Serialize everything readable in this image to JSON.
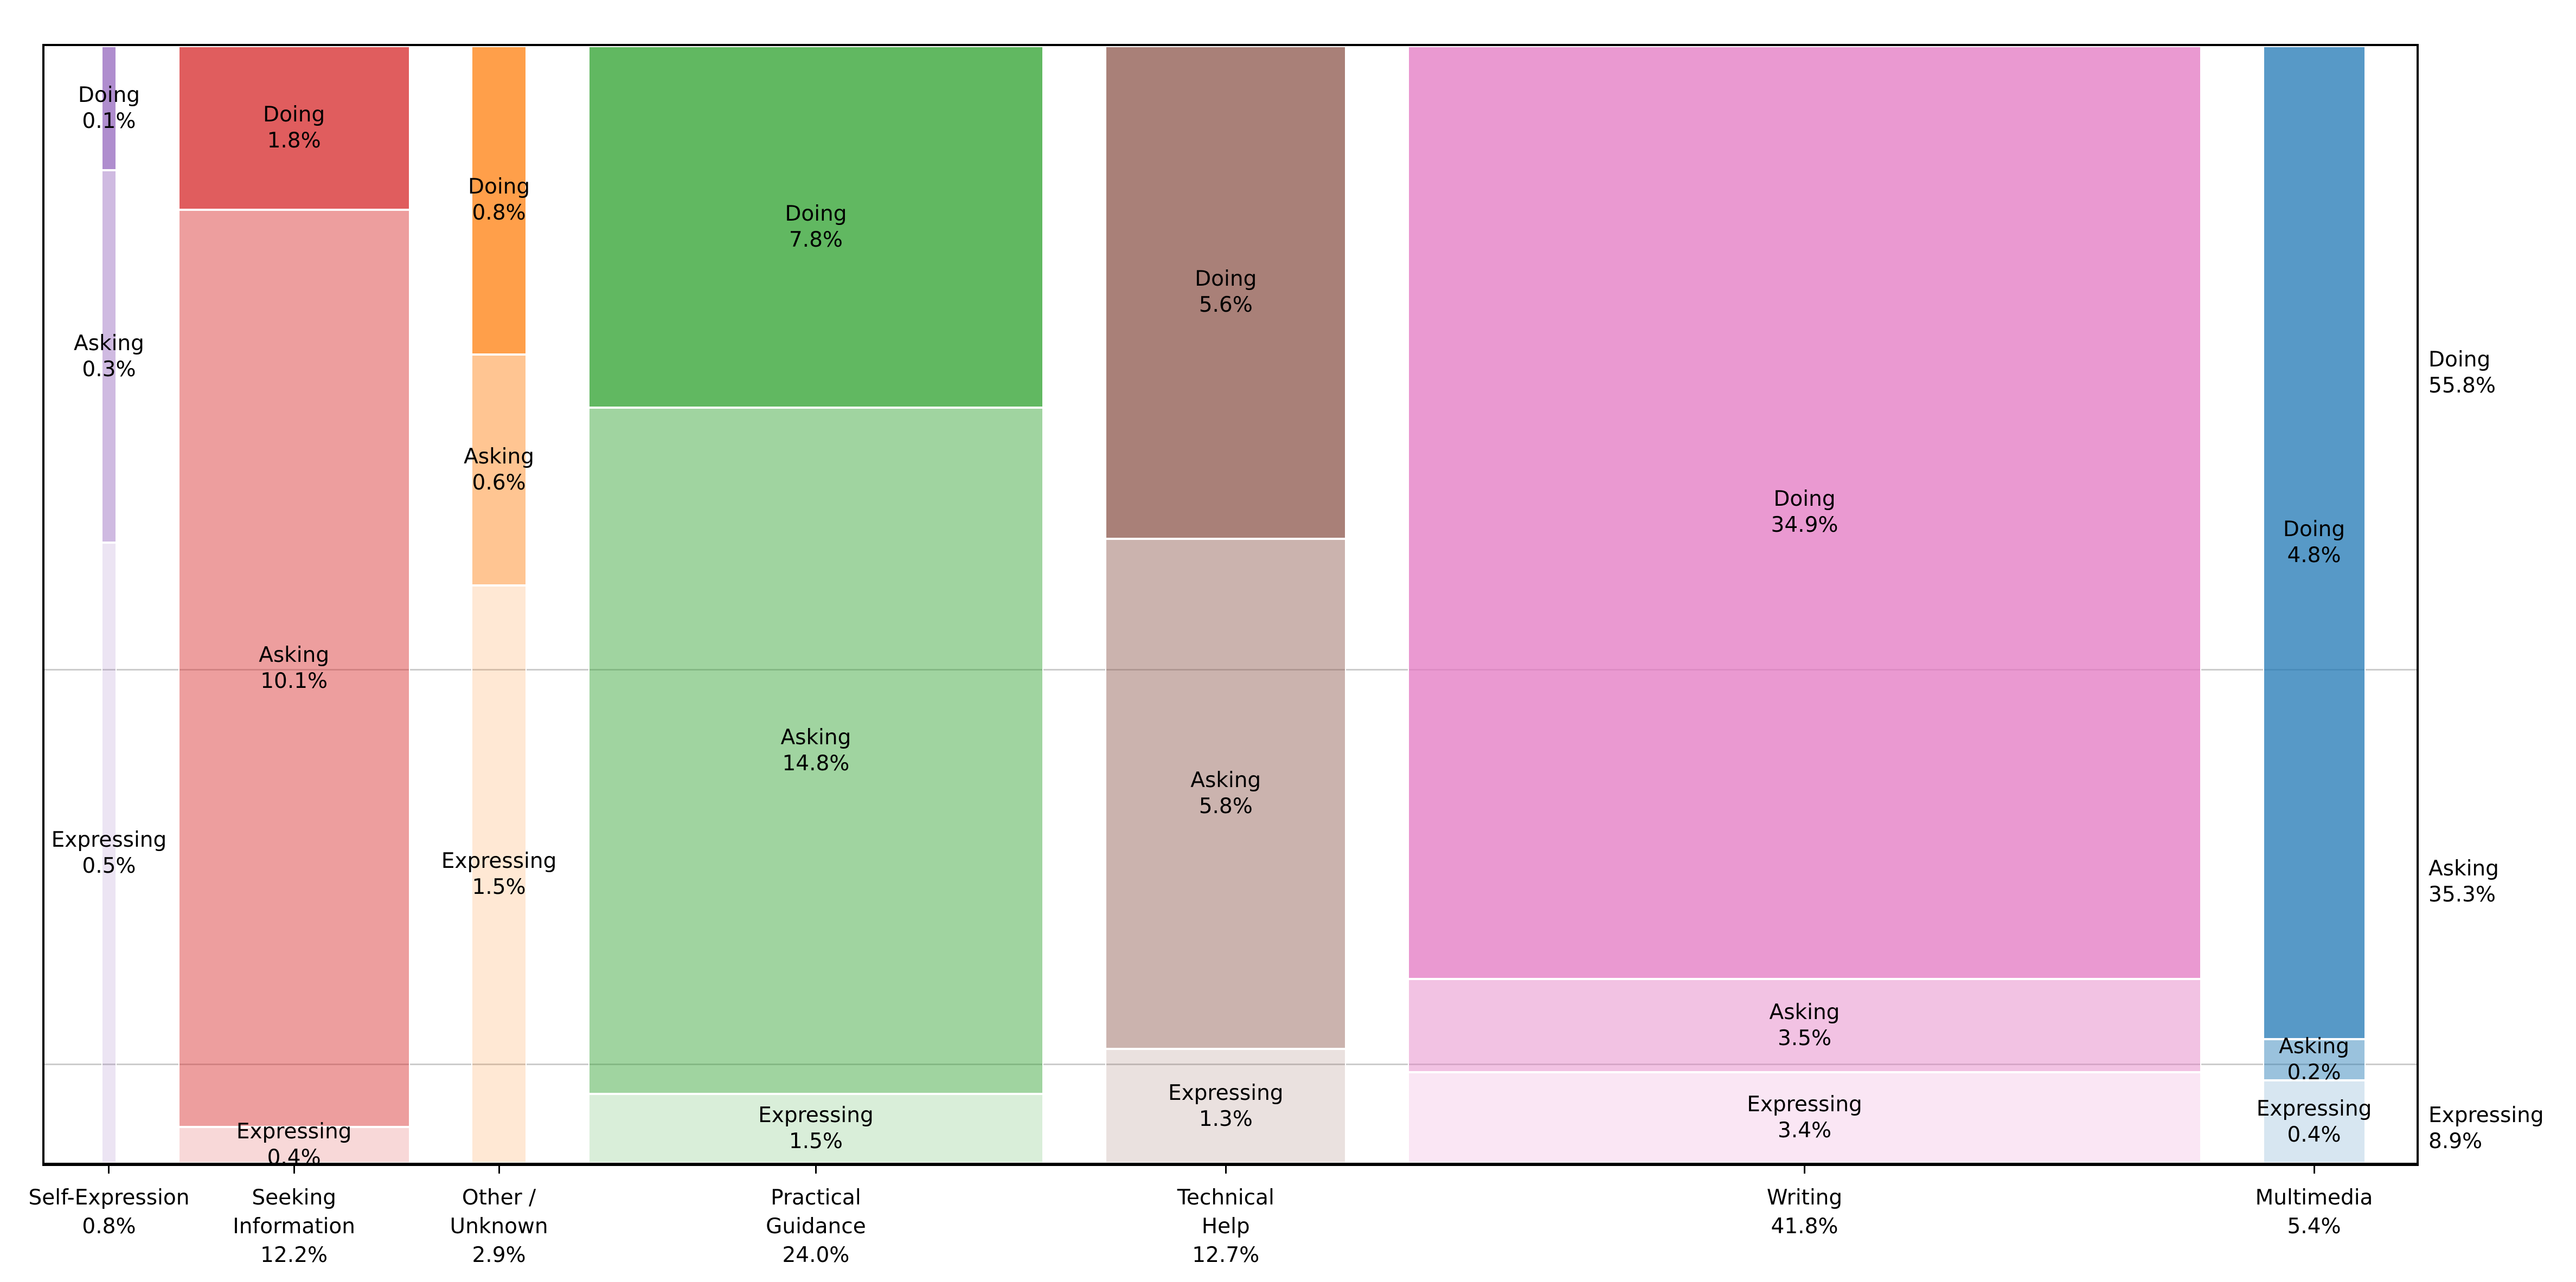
{
  "figure": {
    "background_color": "#ffffff",
    "frame_color": "#000000",
    "gridline_color": "#cccccc",
    "text_color": "#000000"
  },
  "chart_data": {
    "type": "bar",
    "variant": "mosaic / marimekko: column width proportional to category share, segments stacked top-to-bottom and normalized within each column",
    "title": "",
    "xlabel": "",
    "ylabel": "",
    "legend": "none",
    "grid": "two horizontal gridlines at cumulative row boundaries (55.8% and 91.1% from top)",
    "rows": [
      "Doing",
      "Asking",
      "Expressing"
    ],
    "row_totals": [
      {
        "row": "Doing",
        "pct": 55.8,
        "pct_label": "55.8%"
      },
      {
        "row": "Asking",
        "pct": 35.3,
        "pct_label": "35.3%"
      },
      {
        "row": "Expressing",
        "pct": 8.9,
        "pct_label": "8.9%"
      }
    ],
    "segment_alpha": {
      "Doing": 0.75,
      "Asking": 0.45,
      "Expressing": 0.18
    },
    "columns": [
      {
        "name": "Self-Expression",
        "pct": 0.8,
        "base_color": "#9467bd",
        "axis_label_lines": [
          "Self-Expression",
          "0.8%"
        ],
        "segments": [
          {
            "row": "Doing",
            "pct": 0.1,
            "pct_label": "0.1%"
          },
          {
            "row": "Asking",
            "pct": 0.3,
            "pct_label": "0.3%"
          },
          {
            "row": "Expressing",
            "pct": 0.5,
            "pct_label": "0.5%"
          }
        ]
      },
      {
        "name": "Seeking Information",
        "pct": 12.2,
        "base_color": "#d62728",
        "axis_label_lines": [
          "Seeking",
          "Information",
          "12.2%"
        ],
        "segments": [
          {
            "row": "Doing",
            "pct": 1.8,
            "pct_label": "1.8%"
          },
          {
            "row": "Asking",
            "pct": 10.1,
            "pct_label": "10.1%"
          },
          {
            "row": "Expressing",
            "pct": 0.4,
            "pct_label": "0.4%"
          }
        ]
      },
      {
        "name": "Other / Unknown",
        "pct": 2.9,
        "base_color": "#ff7f0e",
        "axis_label_lines": [
          "Other /",
          "Unknown",
          "2.9%"
        ],
        "segments": [
          {
            "row": "Doing",
            "pct": 0.8,
            "pct_label": "0.8%"
          },
          {
            "row": "Asking",
            "pct": 0.6,
            "pct_label": "0.6%"
          },
          {
            "row": "Expressing",
            "pct": 1.5,
            "pct_label": "1.5%"
          }
        ]
      },
      {
        "name": "Practical Guidance",
        "pct": 24.0,
        "base_color": "#2ca02c",
        "axis_label_lines": [
          "Practical",
          "Guidance",
          "24.0%"
        ],
        "segments": [
          {
            "row": "Doing",
            "pct": 7.8,
            "pct_label": "7.8%"
          },
          {
            "row": "Asking",
            "pct": 14.8,
            "pct_label": "14.8%"
          },
          {
            "row": "Expressing",
            "pct": 1.5,
            "pct_label": "1.5%"
          }
        ]
      },
      {
        "name": "Technical Help",
        "pct": 12.7,
        "base_color": "#8c564b",
        "axis_label_lines": [
          "Technical",
          "Help",
          "12.7%"
        ],
        "segments": [
          {
            "row": "Doing",
            "pct": 5.6,
            "pct_label": "5.6%"
          },
          {
            "row": "Asking",
            "pct": 5.8,
            "pct_label": "5.8%"
          },
          {
            "row": "Expressing",
            "pct": 1.3,
            "pct_label": "1.3%"
          }
        ]
      },
      {
        "name": "Writing",
        "pct": 41.8,
        "base_color": "#e377c2",
        "axis_label_lines": [
          "Writing",
          "41.8%"
        ],
        "segments": [
          {
            "row": "Doing",
            "pct": 34.9,
            "pct_label": "34.9%"
          },
          {
            "row": "Asking",
            "pct": 3.5,
            "pct_label": "3.5%"
          },
          {
            "row": "Expressing",
            "pct": 3.4,
            "pct_label": "3.4%"
          }
        ]
      },
      {
        "name": "Multimedia",
        "pct": 5.4,
        "base_color": "#1f77b4",
        "axis_label_lines": [
          "Multimedia",
          "5.4%"
        ],
        "segments": [
          {
            "row": "Doing",
            "pct": 4.8,
            "pct_label": "4.8%"
          },
          {
            "row": "Asking",
            "pct": 0.2,
            "pct_label": "0.2%"
          },
          {
            "row": "Expressing",
            "pct": 0.4,
            "pct_label": "0.4%"
          }
        ]
      }
    ]
  }
}
